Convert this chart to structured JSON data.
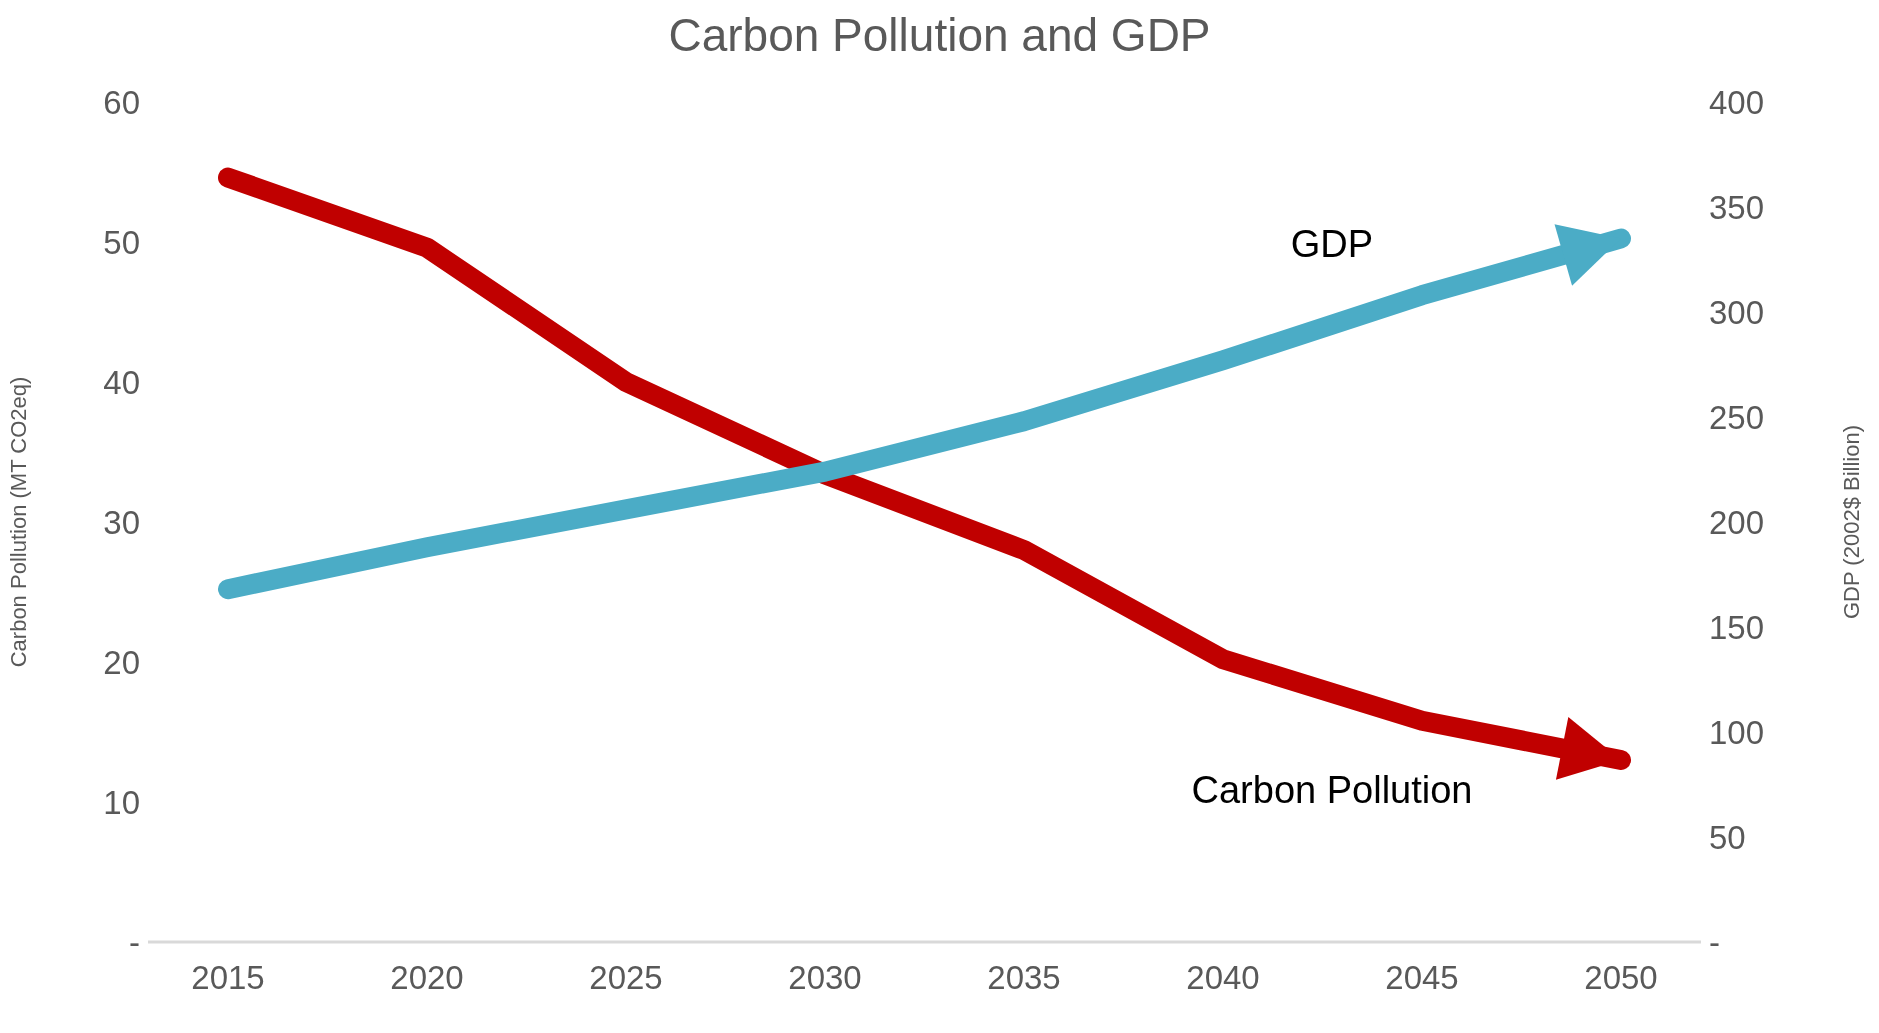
{
  "chart_data": {
    "type": "line",
    "title": "Carbon Pollution and GDP",
    "ylabel": "Carbon Pollution (MT CO2eq)",
    "y2label": "GDP (2002$ Billion)",
    "categories": [
      "2015",
      "2020",
      "2025",
      "2030",
      "2035",
      "2040",
      "2045",
      "2050"
    ],
    "series": [
      {
        "name": "Carbon Pollution",
        "color": "#c00000",
        "values": [
          54.6,
          49.6,
          40,
          33.4,
          28,
          20.2,
          15.8,
          13
        ]
      },
      {
        "name": "GDP",
        "color": "#4bacc6",
        "axis": "y2",
        "values": [
          168,
          188,
          206,
          224,
          248,
          277,
          308,
          335
        ]
      }
    ],
    "ylim": [
      0,
      60
    ],
    "yticks": [
      {
        "value": 0,
        "label": "-"
      },
      10,
      20,
      30,
      40,
      50,
      60
    ],
    "y2lim": [
      0,
      400
    ],
    "y2ticks": [
      {
        "value": 0,
        "label": "-"
      },
      50,
      100,
      150,
      200,
      250,
      300,
      350,
      400
    ],
    "grid": false,
    "legend": false,
    "marker": "none",
    "line_style": "solid"
  }
}
